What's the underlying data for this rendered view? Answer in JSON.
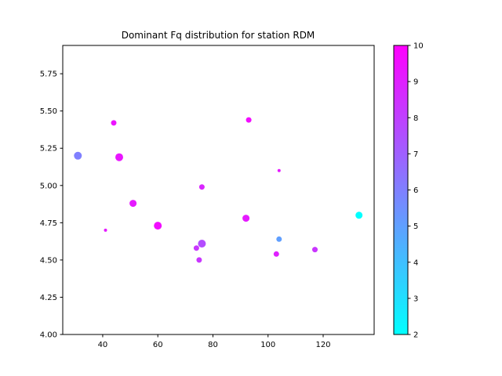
{
  "chart_data": {
    "type": "scatter",
    "title": "Dominant Fq distribution for station RDM",
    "xlabel": "",
    "ylabel": "",
    "xlim": [
      25.5,
      138.5
    ],
    "ylim": [
      4.0,
      5.94
    ],
    "x_ticks": [
      40,
      60,
      80,
      100,
      120
    ],
    "y_ticks": [
      4.0,
      4.25,
      4.5,
      4.75,
      5.0,
      5.25,
      5.5,
      5.75
    ],
    "colorbar": {
      "min": 2,
      "max": 10,
      "ticks": [
        2,
        3,
        4,
        5,
        6,
        7,
        8,
        9,
        10
      ],
      "colormap": "cool",
      "color_low": "#00ffff",
      "color_high": "#ff00ff"
    },
    "grid": false,
    "points": [
      {
        "x": 31,
        "y": 5.2,
        "c": 6.0,
        "size": 10
      },
      {
        "x": 44,
        "y": 5.42,
        "c": 9.4,
        "size": 7
      },
      {
        "x": 46,
        "y": 5.19,
        "c": 9.3,
        "size": 10
      },
      {
        "x": 41,
        "y": 4.7,
        "c": 9.2,
        "size": 4
      },
      {
        "x": 51,
        "y": 4.88,
        "c": 9.2,
        "size": 9
      },
      {
        "x": 60,
        "y": 4.73,
        "c": 9.6,
        "size": 10
      },
      {
        "x": 74,
        "y": 4.58,
        "c": 8.3,
        "size": 7
      },
      {
        "x": 75,
        "y": 4.5,
        "c": 8.3,
        "size": 7
      },
      {
        "x": 76,
        "y": 4.61,
        "c": 7.6,
        "size": 10
      },
      {
        "x": 76,
        "y": 4.99,
        "c": 8.8,
        "size": 7
      },
      {
        "x": 92,
        "y": 4.78,
        "c": 9.2,
        "size": 9
      },
      {
        "x": 93,
        "y": 5.44,
        "c": 9.6,
        "size": 7
      },
      {
        "x": 103,
        "y": 4.54,
        "c": 9.0,
        "size": 7
      },
      {
        "x": 104,
        "y": 4.64,
        "c": 5.0,
        "size": 7
      },
      {
        "x": 104,
        "y": 5.1,
        "c": 9.2,
        "size": 4
      },
      {
        "x": 117,
        "y": 4.57,
        "c": 8.3,
        "size": 7
      },
      {
        "x": 133,
        "y": 4.8,
        "c": 2.0,
        "size": 9
      }
    ]
  }
}
